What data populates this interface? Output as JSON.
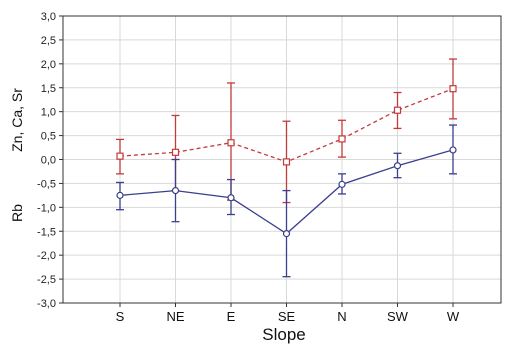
{
  "chart_data": {
    "type": "line",
    "categories": [
      "S",
      "NE",
      "E",
      "SE",
      "N",
      "SW",
      "W"
    ],
    "xlabel": "Slope",
    "ylabel_upper": "Zn, Ca, Sr",
    "ylabel_lower": "Rb",
    "ylim": [
      -3.0,
      3.0
    ],
    "yticks": [
      3.0,
      2.5,
      2.0,
      1.5,
      1.0,
      0.5,
      0.0,
      -0.5,
      -1.0,
      -1.5,
      -2.0,
      -2.5,
      -3.0
    ],
    "ytick_labels": [
      "3,0",
      "2,5",
      "2,0",
      "1,5",
      "1,0",
      "0,5",
      "0,0",
      "-0,5",
      "-1,0",
      "-1,5",
      "-2,0",
      "-2,5",
      "-3,0"
    ],
    "grid": true,
    "series": [
      {
        "color": "#c23b3b",
        "line_style": "dashed",
        "marker": "square",
        "values": [
          0.07,
          0.15,
          0.35,
          -0.05,
          0.43,
          1.03,
          1.48
        ],
        "lower": [
          -0.3,
          -0.65,
          -0.85,
          -0.9,
          0.05,
          0.65,
          0.85
        ],
        "upper": [
          0.42,
          0.92,
          1.6,
          0.8,
          0.82,
          1.4,
          2.1
        ]
      },
      {
        "color": "#3a3f8f",
        "line_style": "solid",
        "marker": "circle",
        "values": [
          -0.75,
          -0.65,
          -0.8,
          -1.55,
          -0.52,
          -0.13,
          0.2
        ],
        "lower": [
          -1.05,
          -1.3,
          -1.15,
          -2.45,
          -0.72,
          -0.38,
          -0.3
        ],
        "upper": [
          -0.48,
          0.0,
          -0.42,
          -0.65,
          -0.3,
          0.13,
          0.72
        ]
      }
    ]
  }
}
